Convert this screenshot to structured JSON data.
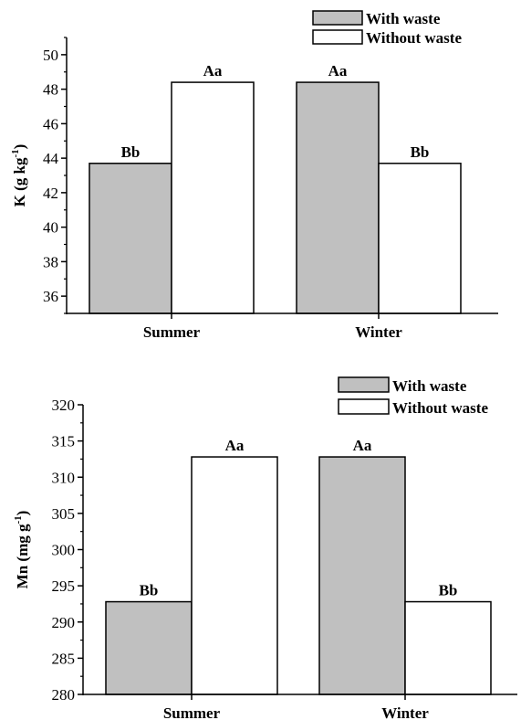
{
  "chart_data": [
    {
      "type": "bar",
      "categories": [
        "Summer",
        "Winter"
      ],
      "series": [
        {
          "name": "With waste",
          "values": [
            43.7,
            48.4
          ],
          "color": "#c0c0c0",
          "labels": [
            "Bb",
            "Aa"
          ]
        },
        {
          "name": "Without waste",
          "values": [
            48.4,
            43.7
          ],
          "color": "#ffffff",
          "labels": [
            "Aa",
            "Bb"
          ]
        }
      ],
      "ylabel": {
        "main": "K (g kg",
        "sup": "-1",
        "close": ")"
      },
      "ylim": [
        35,
        51
      ],
      "yticks": [
        36,
        38,
        40,
        42,
        44,
        46,
        48,
        50
      ],
      "legend": "top-right"
    },
    {
      "type": "bar",
      "categories": [
        "Summer",
        "Winter"
      ],
      "series": [
        {
          "name": "With waste",
          "values": [
            292.8,
            312.8
          ],
          "color": "#c0c0c0",
          "labels": [
            "Bb",
            "Aa"
          ]
        },
        {
          "name": "Without waste",
          "values": [
            312.8,
            292.8
          ],
          "color": "#ffffff",
          "labels": [
            "Aa",
            "Bb"
          ]
        }
      ],
      "ylabel": {
        "main": "Mn (mg g",
        "sup": "-1",
        "close": ")"
      },
      "ylim": [
        280,
        320
      ],
      "yticks": [
        280,
        285,
        290,
        295,
        300,
        305,
        310,
        315,
        320
      ],
      "legend": "top-right"
    }
  ]
}
